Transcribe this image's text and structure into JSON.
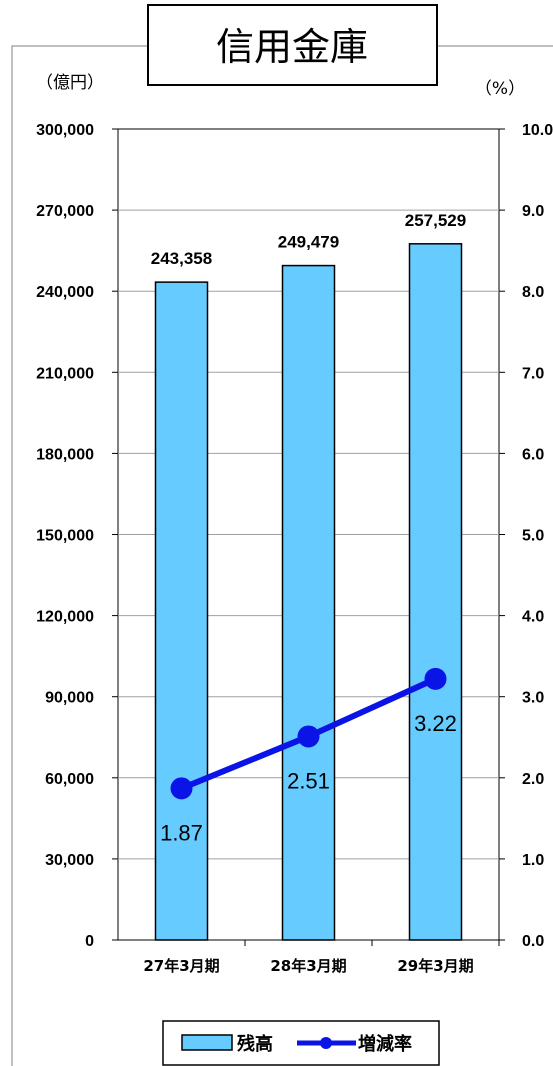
{
  "chart_data": {
    "type": "bar",
    "title": "信用金庫",
    "y_left_unit": "（億円）",
    "y_right_unit": "（%）",
    "ylim_left": [
      0,
      300000
    ],
    "ylim_right": [
      0,
      10
    ],
    "y_left_ticks": [
      "300,000",
      "270,000",
      "240,000",
      "210,000",
      "180,000",
      "150,000",
      "120,000",
      "90,000",
      "60,000",
      "30,000",
      "0"
    ],
    "y_right_ticks": [
      "10.0",
      "9.0",
      "8.0",
      "7.0",
      "6.0",
      "5.0",
      "4.0",
      "3.0",
      "2.0",
      "1.0",
      "0.0"
    ],
    "categories": [
      "27年3月期",
      "28年3月期",
      "29年3月期"
    ],
    "series": [
      {
        "name": "残高",
        "kind": "bar",
        "axis": "left",
        "color": "#66ccff",
        "values": [
          243358,
          249479,
          257529
        ],
        "labels": [
          "243,358",
          "249,479",
          "257,529"
        ]
      },
      {
        "name": "増減率",
        "kind": "line",
        "axis": "right",
        "color": "#0a14e6",
        "values": [
          1.87,
          2.51,
          3.22
        ],
        "labels": [
          "1.87",
          "2.51",
          "3.22"
        ]
      }
    ],
    "grid": true,
    "legend": "bottom"
  }
}
